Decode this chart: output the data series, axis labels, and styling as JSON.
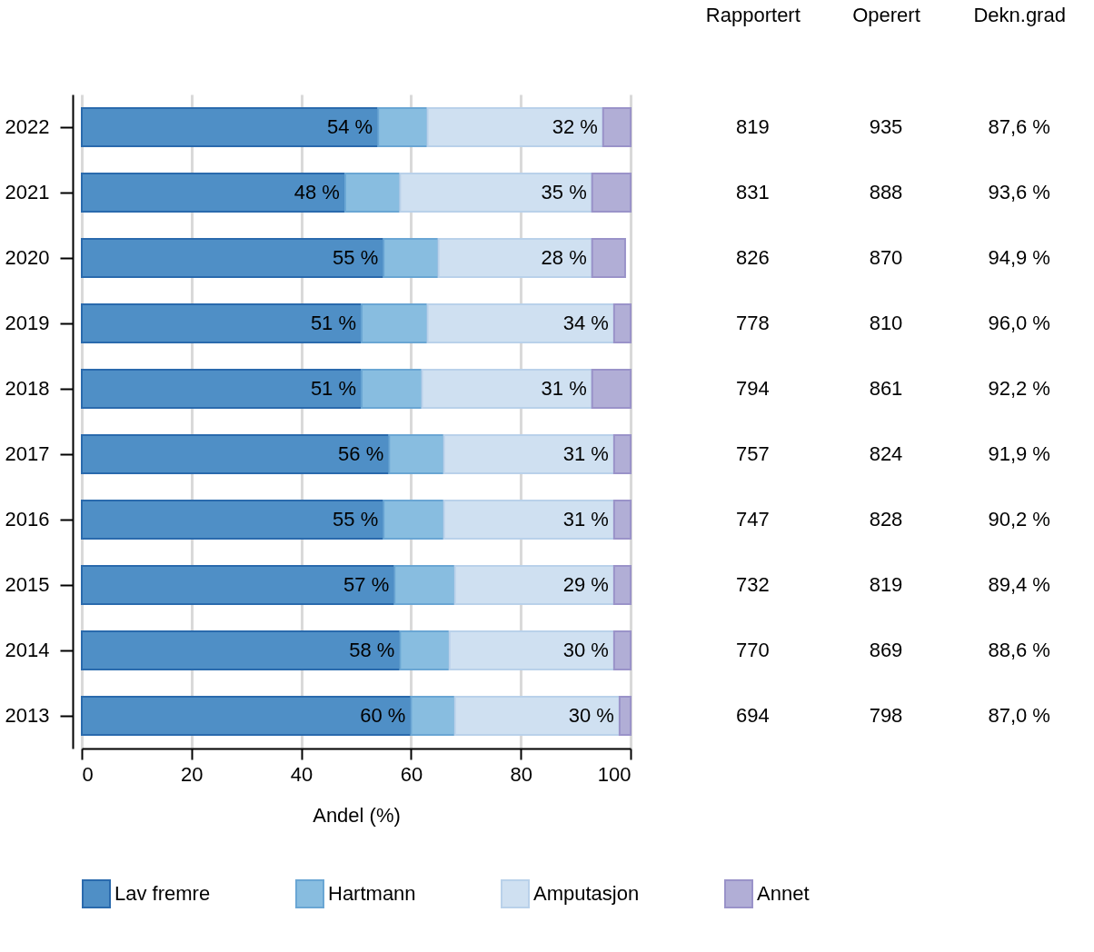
{
  "chart_data": [
    {
      "type": "bar",
      "orientation": "horizontal",
      "stacked": true,
      "categories": [
        "2022",
        "2021",
        "2020",
        "2019",
        "2018",
        "2017",
        "2016",
        "2015",
        "2014",
        "2013"
      ],
      "xlabel": "Andel (%)",
      "xlim": [
        0,
        100
      ],
      "xticks": [
        0,
        20,
        40,
        60,
        80,
        100
      ],
      "grid": "x",
      "legend": "bottom",
      "series": [
        {
          "name": "Lav fremre",
          "color": "#4f8fc6",
          "values": [
            54,
            48,
            55,
            51,
            51,
            56,
            55,
            57,
            58,
            60
          ],
          "value_labels": [
            "54 %",
            "48 %",
            "55 %",
            "51 %",
            "51 %",
            "56 %",
            "55 %",
            "57 %",
            "58 %",
            "60 %"
          ]
        },
        {
          "name": "Hartmann",
          "color": "#88bde0",
          "values": [
            9,
            10,
            10,
            12,
            11,
            10,
            11,
            11,
            9,
            8
          ]
        },
        {
          "name": "Amputasjon",
          "color": "#cfe0f1",
          "values": [
            32,
            35,
            28,
            34,
            31,
            31,
            31,
            29,
            30,
            30
          ],
          "value_labels": [
            "32 %",
            "35 %",
            "28 %",
            "34 %",
            "31 %",
            "31 %",
            "31 %",
            "29 %",
            "30 %",
            "30 %"
          ]
        },
        {
          "name": "Annet",
          "color": "#b1aed6",
          "values": [
            5,
            7,
            6,
            3,
            7,
            3,
            3,
            3,
            3,
            2
          ]
        }
      ]
    },
    {
      "type": "other",
      "categories": [
        "Rapportert",
        "Operert",
        "Dekn.grad"
      ],
      "series": [
        {
          "values": [
            819,
            935,
            87.6
          ],
          "value_labels": [
            "819",
            "935",
            "87,6 %"
          ]
        },
        {
          "values": [
            831,
            888,
            93.6
          ],
          "value_labels": [
            "831",
            "888",
            "93,6 %"
          ]
        },
        {
          "values": [
            826,
            870,
            94.9
          ],
          "value_labels": [
            "826",
            "870",
            "94,9 %"
          ]
        },
        {
          "values": [
            778,
            810,
            96.0
          ],
          "value_labels": [
            "778",
            "810",
            "96,0 %"
          ]
        },
        {
          "values": [
            794,
            861,
            92.2
          ],
          "value_labels": [
            "794",
            "861",
            "92,2 %"
          ]
        },
        {
          "values": [
            757,
            824,
            91.9
          ],
          "value_labels": [
            "757",
            "824",
            "91,9 %"
          ]
        },
        {
          "values": [
            747,
            828,
            90.2
          ],
          "value_labels": [
            "747",
            "828",
            "90,2 %"
          ]
        },
        {
          "values": [
            732,
            819,
            89.4
          ],
          "value_labels": [
            "732",
            "819",
            "89,4 %"
          ]
        },
        {
          "values": [
            770,
            869,
            88.6
          ],
          "value_labels": [
            "770",
            "869",
            "88,6 %"
          ]
        },
        {
          "values": [
            694,
            798,
            87.0
          ],
          "value_labels": [
            "694",
            "798",
            "87,0 %"
          ]
        }
      ]
    }
  ]
}
